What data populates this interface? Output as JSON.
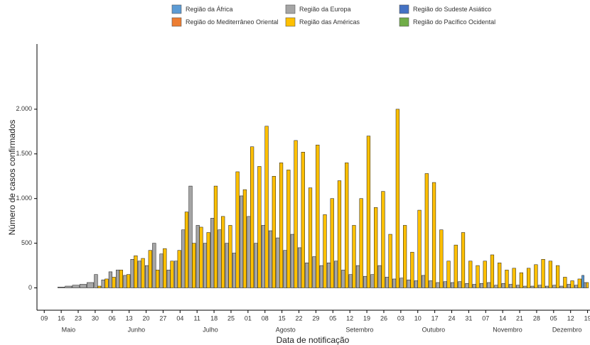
{
  "chart_data": {
    "type": "bar",
    "x_label": "Data de notificação",
    "y_label": "Número de casos confirmados",
    "x": [
      "05-16",
      "05-19",
      "05-22",
      "05-25",
      "05-28",
      "05-31",
      "06-03",
      "06-06",
      "06-09",
      "06-12",
      "06-15",
      "06-18",
      "06-21",
      "06-24",
      "06-27",
      "06-30",
      "07-03",
      "07-06",
      "07-09",
      "07-12",
      "07-15",
      "07-18",
      "07-21",
      "07-24",
      "07-27",
      "07-30",
      "08-02",
      "08-05",
      "08-08",
      "08-11",
      "08-14",
      "08-17",
      "08-20",
      "08-23",
      "08-26",
      "08-29",
      "09-01",
      "09-04",
      "09-07",
      "09-10",
      "09-13",
      "09-16",
      "09-19",
      "09-22",
      "09-25",
      "09-28",
      "10-01",
      "10-04",
      "10-07",
      "10-10",
      "10-13",
      "10-16",
      "10-19",
      "10-22",
      "10-25",
      "10-28",
      "10-31",
      "11-03",
      "11-06",
      "11-09",
      "11-12",
      "11-15",
      "11-18",
      "11-21",
      "11-24",
      "11-27",
      "11-30",
      "12-03",
      "12-06",
      "12-09",
      "12-12",
      "12-15",
      "12-18"
    ],
    "series": [
      {
        "name": "Região da África",
        "color": "#5b9bd5",
        "values": [
          0,
          0,
          0,
          0,
          0,
          0,
          0,
          0,
          0,
          0,
          0,
          0,
          0,
          0,
          0,
          0,
          0,
          0,
          0,
          0,
          0,
          0,
          0,
          0,
          0,
          0,
          0,
          0,
          0,
          0,
          0,
          0,
          0,
          0,
          0,
          0,
          0,
          0,
          0,
          0,
          0,
          0,
          0,
          0,
          0,
          0,
          0,
          0,
          0,
          0,
          0,
          0,
          0,
          0,
          0,
          0,
          0,
          0,
          0,
          0,
          0,
          0,
          0,
          0,
          0,
          0,
          0,
          0,
          0,
          0,
          0,
          0,
          140
        ]
      },
      {
        "name": "Região do Mediterrâneo Oriental",
        "color": "#ed7d31",
        "values": [
          0,
          0,
          0,
          0,
          0,
          0,
          0,
          0,
          0,
          0,
          0,
          0,
          0,
          0,
          0,
          0,
          0,
          0,
          0,
          0,
          0,
          0,
          0,
          0,
          0,
          0,
          0,
          0,
          0,
          0,
          0,
          0,
          0,
          0,
          0,
          0,
          0,
          0,
          0,
          0,
          0,
          0,
          0,
          0,
          0,
          0,
          0,
          0,
          0,
          0,
          0,
          0,
          0,
          0,
          0,
          0,
          0,
          0,
          0,
          0,
          0,
          0,
          0,
          0,
          0,
          0,
          0,
          0,
          0,
          0,
          0,
          0,
          0
        ]
      },
      {
        "name": "Região da Europa",
        "color": "#a5a5a5",
        "values": [
          10,
          20,
          30,
          40,
          60,
          150,
          90,
          180,
          200,
          140,
          320,
          300,
          250,
          500,
          380,
          200,
          300,
          650,
          1140,
          700,
          500,
          780,
          650,
          500,
          390,
          1030,
          800,
          500,
          700,
          640,
          560,
          420,
          600,
          450,
          280,
          350,
          250,
          280,
          300,
          200,
          150,
          250,
          130,
          150,
          250,
          120,
          100,
          110,
          90,
          80,
          140,
          80,
          60,
          70,
          60,
          70,
          50,
          40,
          50,
          60,
          30,
          50,
          40,
          30,
          20,
          20,
          30,
          20,
          30,
          20,
          40,
          30,
          60
        ]
      },
      {
        "name": "Região das Américas",
        "color": "#ffc000",
        "values": [
          0,
          0,
          0,
          0,
          0,
          20,
          100,
          120,
          200,
          150,
          360,
          330,
          420,
          200,
          440,
          300,
          420,
          850,
          500,
          680,
          620,
          1140,
          800,
          700,
          1300,
          1100,
          1580,
          1360,
          1810,
          1250,
          1400,
          1320,
          1650,
          1520,
          1120,
          1600,
          820,
          1000,
          1200,
          1400,
          700,
          1000,
          1700,
          900,
          1080,
          600,
          2000,
          700,
          400,
          870,
          1280,
          1180,
          650,
          300,
          480,
          620,
          300,
          250,
          300,
          370,
          280,
          200,
          220,
          170,
          220,
          260,
          320,
          300,
          250,
          120,
          80,
          100,
          60
        ]
      },
      {
        "name": "Região do Sudeste Asiático",
        "color": "#4472c4",
        "values": [
          0,
          0,
          0,
          0,
          0,
          0,
          0,
          0,
          0,
          0,
          0,
          0,
          0,
          0,
          0,
          0,
          0,
          0,
          0,
          0,
          0,
          0,
          0,
          0,
          0,
          0,
          0,
          0,
          0,
          0,
          0,
          0,
          0,
          0,
          0,
          0,
          0,
          0,
          0,
          0,
          0,
          0,
          0,
          0,
          0,
          0,
          0,
          0,
          0,
          0,
          0,
          0,
          0,
          0,
          0,
          0,
          0,
          0,
          0,
          0,
          0,
          0,
          0,
          0,
          0,
          0,
          0,
          0,
          0,
          0,
          0,
          0,
          0
        ]
      },
      {
        "name": "Região do Pacífico Ocidental",
        "color": "#70ad47",
        "values": [
          0,
          0,
          0,
          0,
          0,
          0,
          0,
          0,
          0,
          0,
          0,
          0,
          0,
          0,
          0,
          0,
          0,
          0,
          0,
          0,
          0,
          0,
          0,
          0,
          0,
          0,
          0,
          0,
          0,
          0,
          0,
          0,
          0,
          0,
          0,
          0,
          0,
          0,
          0,
          0,
          0,
          0,
          0,
          0,
          0,
          0,
          0,
          0,
          0,
          0,
          0,
          0,
          0,
          0,
          0,
          0,
          0,
          0,
          0,
          0,
          0,
          0,
          0,
          0,
          0,
          0,
          0,
          0,
          0,
          0,
          0,
          0,
          0
        ]
      }
    ],
    "xlim": [
      "05-06",
      "12-20"
    ],
    "xticks": [
      {
        "value": "05-09",
        "label": "09"
      },
      {
        "value": "05-16",
        "label": "16"
      },
      {
        "value": "05-23",
        "label": "23"
      },
      {
        "value": "05-30",
        "label": "30"
      },
      {
        "value": "06-06",
        "label": "06"
      },
      {
        "value": "06-13",
        "label": "13"
      },
      {
        "value": "06-20",
        "label": "20"
      },
      {
        "value": "06-27",
        "label": "27"
      },
      {
        "value": "07-04",
        "label": "04"
      },
      {
        "value": "07-11",
        "label": "11"
      },
      {
        "value": "07-18",
        "label": "18"
      },
      {
        "value": "07-25",
        "label": "25"
      },
      {
        "value": "08-01",
        "label": "01"
      },
      {
        "value": "08-08",
        "label": "08"
      },
      {
        "value": "08-15",
        "label": "15"
      },
      {
        "value": "08-22",
        "label": "22"
      },
      {
        "value": "08-29",
        "label": "29"
      },
      {
        "value": "09-05",
        "label": "05"
      },
      {
        "value": "09-12",
        "label": "12"
      },
      {
        "value": "09-19",
        "label": "19"
      },
      {
        "value": "09-26",
        "label": "26"
      },
      {
        "value": "10-03",
        "label": "03"
      },
      {
        "value": "10-10",
        "label": "10"
      },
      {
        "value": "10-17",
        "label": "17"
      },
      {
        "value": "10-24",
        "label": "24"
      },
      {
        "value": "10-31",
        "label": "31"
      },
      {
        "value": "11-07",
        "label": "07"
      },
      {
        "value": "11-14",
        "label": "14"
      },
      {
        "value": "11-21",
        "label": "21"
      },
      {
        "value": "11-28",
        "label": "28"
      },
      {
        "value": "12-05",
        "label": "05"
      },
      {
        "value": "12-12",
        "label": "12"
      },
      {
        "value": "12-19",
        "label": "19"
      }
    ],
    "months": [
      "Maio",
      "Junho",
      "Julho",
      "Agosto",
      "Setembro",
      "Outubro",
      "Novembro",
      "Dezembro"
    ],
    "ylim": [
      -250,
      2730
    ],
    "yticks": [
      0,
      500,
      {
        "value": 1000,
        "label": "1.000"
      },
      {
        "value": 1500,
        "label": "1.500"
      },
      {
        "value": 2000,
        "label": "2.000"
      }
    ],
    "grid": false
  }
}
